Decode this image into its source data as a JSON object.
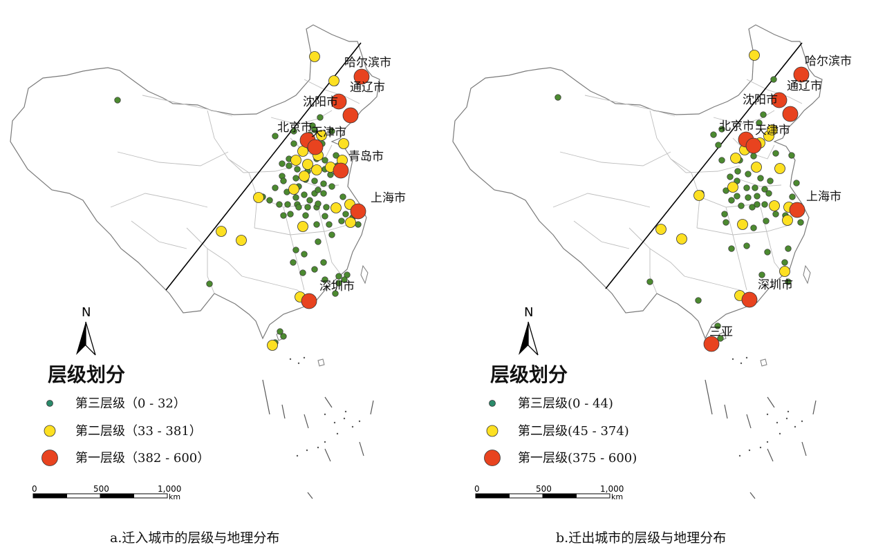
{
  "colors": {
    "tier1": "#e8431f",
    "tier2": "#fde022",
    "tier3": "#4c8a30",
    "tier3_legend": "#2a8a6a",
    "border": "#bdbdbd",
    "outline": "#7a7a7a",
    "dot_stroke": "#333333"
  },
  "panels": [
    {
      "id": "a",
      "caption": "a.迁入城市的层级与地理分布",
      "north": "N",
      "legend_title": "层级划分",
      "legend": [
        {
          "tier": 3,
          "label": "第三层级（0 - 32）"
        },
        {
          "tier": 2,
          "label": "第二层级（33 - 381）"
        },
        {
          "tier": 1,
          "label": "第一层级（382 - 600）"
        }
      ],
      "scale": {
        "ticks": [
          "0",
          "500",
          "1,000"
        ],
        "unit": "km"
      },
      "city_labels": [
        "哈尔滨市",
        "通辽市",
        "沈阳市",
        "北京市",
        "天津市",
        "青岛市",
        "上海市",
        "深圳市"
      ],
      "tier1_cities": [
        "哈尔滨市",
        "通辽市",
        "沈阳市",
        "北京市",
        "天津市",
        "青岛市",
        "上海市",
        "深圳市"
      ],
      "tier2_count": 26,
      "tier3_count": 84
    },
    {
      "id": "b",
      "caption": "b.迁出城市的层级与地理分布",
      "north": "N",
      "legend_title": "层级划分",
      "legend": [
        {
          "tier": 3,
          "label": "第三层级(0 - 44)"
        },
        {
          "tier": 2,
          "label": "第二层级(45 - 374)"
        },
        {
          "tier": 1,
          "label": "第一层级(375 - 600)"
        }
      ],
      "scale": {
        "ticks": [
          "0",
          "500",
          "1,000"
        ],
        "unit": "km"
      },
      "city_labels": [
        "哈尔滨市",
        "通辽市",
        "沈阳市",
        "北京市",
        "天津市",
        "上海市",
        "深圳市",
        "三亚"
      ],
      "tier1_cities": [
        "哈尔滨市",
        "通辽市",
        "沈阳市",
        "北京市",
        "天津市",
        "上海市",
        "深圳市",
        "三亚"
      ],
      "tier2_count": 20,
      "tier3_count": 58
    }
  ]
}
